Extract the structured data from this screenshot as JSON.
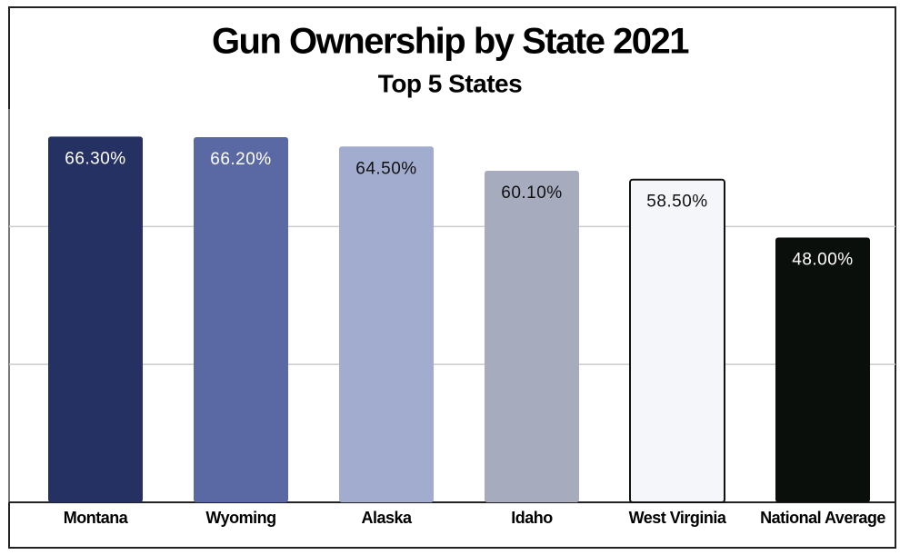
{
  "chart_data": {
    "type": "bar",
    "title": "Gun Ownership by State 2021",
    "subtitle": "Top 5 States",
    "categories": [
      "Montana",
      "Wyoming",
      "Alaska",
      "Idaho",
      "West Virginia",
      "National Average"
    ],
    "values": [
      66.3,
      66.2,
      64.5,
      60.1,
      58.5,
      48.0
    ],
    "value_labels": [
      "66.30%",
      "66.20%",
      "64.50%",
      "60.10%",
      "58.50%",
      "48.00%"
    ],
    "colors": [
      "#253163",
      "#5a69a3",
      "#a2acce",
      "#a6abbe",
      "#f5f6fa",
      "#0b0f0b"
    ],
    "ylim": [
      0,
      71.3
    ],
    "yticks": [
      0,
      25,
      50
    ],
    "grid": true
  }
}
